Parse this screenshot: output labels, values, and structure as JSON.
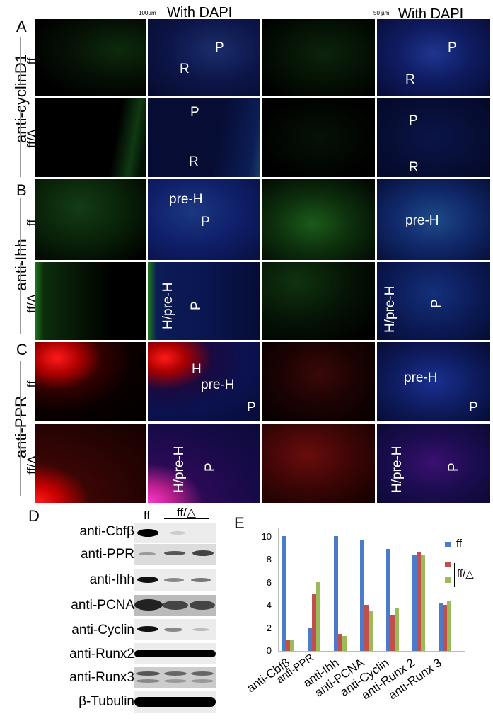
{
  "figure": {
    "panels_micro": {
      "column_headers": {
        "left_scale": "100µm",
        "left_header": "With DAPI",
        "right_scale": "50 µm",
        "right_header": "With DAPI"
      },
      "genotypes": {
        "control": "ff",
        "mutant": "ff/Δ"
      },
      "A": {
        "letter": "A",
        "antibody": "anti-cyclinD1",
        "rows": [
          {
            "genotype": "ff",
            "labels_low_dapi": [
              "P",
              "R"
            ],
            "labels_high_dapi": [
              "P",
              "R"
            ]
          },
          {
            "genotype": "ff/Δ",
            "labels_low_dapi": [
              "P",
              "R"
            ],
            "labels_high_dapi": [
              "P",
              "R"
            ]
          }
        ]
      },
      "B": {
        "letter": "B",
        "antibody": "anti-Ihh",
        "rows": [
          {
            "genotype": "ff",
            "labels_low_dapi": [
              "pre-H",
              "P"
            ],
            "labels_high_dapi": [
              "pre-H"
            ]
          },
          {
            "genotype": "ff/Δ",
            "labels_low_dapi": [
              "H/pre-H",
              "P"
            ],
            "labels_high_dapi": [
              "H/pre-H",
              "P"
            ]
          }
        ]
      },
      "C": {
        "letter": "C",
        "antibody": "anti-PPR",
        "rows": [
          {
            "genotype": "ff",
            "labels_low_dapi": [
              "H",
              "pre-H",
              "P"
            ],
            "labels_high_dapi": [
              "pre-H",
              "P"
            ]
          },
          {
            "genotype": "ff/Δ",
            "labels_low_dapi": [
              "H/pre-H",
              "P"
            ],
            "labels_high_dapi": [
              "H/pre-H",
              "P"
            ]
          }
        ]
      }
    },
    "panel_D": {
      "letter": "D",
      "lane_headers": {
        "control": "ff",
        "mutant": "ff/△"
      },
      "blots": [
        {
          "label": "anti-Cbfβ",
          "bands": [
            1.0,
            0.12,
            0.05
          ]
        },
        {
          "label": "anti-PPR",
          "bands": [
            0.25,
            0.6,
            0.7
          ]
        },
        {
          "label": "anti-Ihh",
          "bands": [
            0.9,
            0.35,
            0.4
          ]
        },
        {
          "label": "anti-PCNA",
          "bands": [
            0.95,
            0.8,
            0.8
          ]
        },
        {
          "label": "anti-Cyclin",
          "bands": [
            0.9,
            0.4,
            0.15
          ]
        },
        {
          "label": "anti-Runx2",
          "bands": [
            1.0,
            1.0,
            1.0
          ]
        },
        {
          "label": "anti-Runx3",
          "bands": [
            0.6,
            0.55,
            0.55
          ]
        },
        {
          "label": "β-Tubulin",
          "bands": [
            1.0,
            1.0,
            1.0
          ]
        }
      ]
    },
    "panel_E_letter": "E",
    "legend": {
      "ff": "ff",
      "mutant": "ff/△"
    },
    "colors": {
      "ff": "#4a7cc9",
      "mutant_1": "#c0504d",
      "mutant_2": "#9bbb59"
    }
  },
  "chart_data": {
    "type": "bar",
    "title": "",
    "xlabel": "",
    "ylabel": "",
    "categories": [
      "anti-Cbfβ",
      "anti-PPR",
      "anti-Ihh",
      "anti-PCNA",
      "anti-Cyclin",
      "anti-Runx 2",
      "anti-Runx 3"
    ],
    "series": [
      {
        "name": "ff",
        "values": [
          10,
          2,
          10,
          9.6,
          8.9,
          8.4,
          4.2
        ]
      },
      {
        "name": "ff/△ (1)",
        "values": [
          1,
          5,
          1.5,
          4,
          3.1,
          8.6,
          4.0
        ]
      },
      {
        "name": "ff/△ (2)",
        "values": [
          1,
          6,
          1.3,
          3.5,
          3.7,
          8.4,
          4.3
        ]
      }
    ],
    "yticks": [
      0,
      2,
      4,
      6,
      8,
      10
    ],
    "ylim": [
      0,
      10.5
    ],
    "grid": false,
    "legend_position": "upper-right"
  }
}
